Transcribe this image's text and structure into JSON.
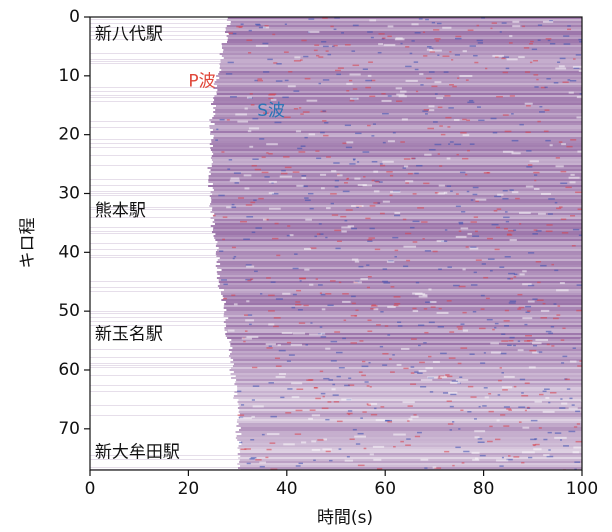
{
  "chart_data": {
    "type": "heatmap",
    "xlabel": "時間(s)",
    "ylabel": "キロ程",
    "xlim": [
      0,
      100
    ],
    "xticks": [
      0,
      20,
      40,
      60,
      80,
      100
    ],
    "ylim": [
      77,
      0
    ],
    "yticks": [
      0,
      10,
      20,
      30,
      40,
      50,
      60,
      70
    ],
    "annotations": [
      {
        "text": "新八代駅",
        "x": 1,
        "y": 3,
        "color": "#111111"
      },
      {
        "text": "熊本駅",
        "x": 1,
        "y": 33,
        "color": "#111111"
      },
      {
        "text": "新玉名駅",
        "x": 1,
        "y": 54,
        "color": "#111111"
      },
      {
        "text": "新大牟田駅",
        "x": 1,
        "y": 74,
        "color": "#111111"
      },
      {
        "text": "P波",
        "x": 20,
        "y": 11,
        "color": "#e0473a"
      },
      {
        "text": "S波",
        "x": 34,
        "y": 16,
        "color": "#2a74b5"
      }
    ]
  }
}
